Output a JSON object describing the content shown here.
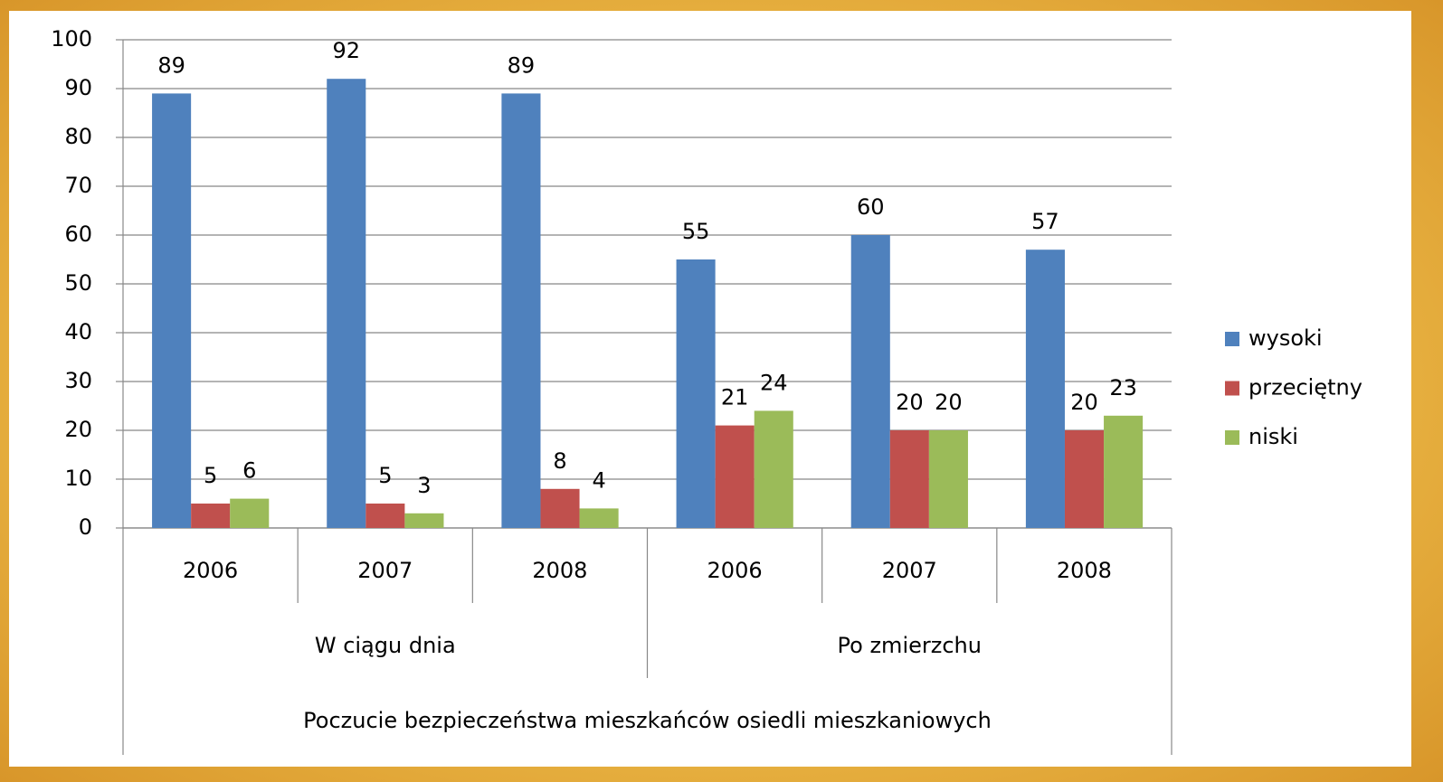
{
  "chart_data": {
    "type": "bar",
    "groups": [
      {
        "name": "W ciągu dnia",
        "categories": [
          "2006",
          "2007",
          "2008"
        ]
      },
      {
        "name": "Po zmierzchu",
        "categories": [
          "2006",
          "2007",
          "2008"
        ]
      }
    ],
    "x_label": "Poczucie bezpieczeństwa mieszkańców osiedli mieszkaniowych",
    "series": [
      {
        "name": "wysoki",
        "color": "#4f81bd",
        "values": [
          89,
          92,
          89,
          55,
          60,
          57
        ]
      },
      {
        "name": "przeciętny",
        "color": "#c0504d",
        "values": [
          5,
          5,
          8,
          21,
          20,
          20
        ]
      },
      {
        "name": "niski",
        "color": "#9bbb59",
        "values": [
          6,
          3,
          4,
          24,
          20,
          23
        ]
      }
    ],
    "ylim": [
      0,
      100
    ],
    "yticks": [
      0,
      10,
      20,
      30,
      40,
      50,
      60,
      70,
      80,
      90,
      100
    ],
    "grid": true,
    "legend": "right"
  }
}
